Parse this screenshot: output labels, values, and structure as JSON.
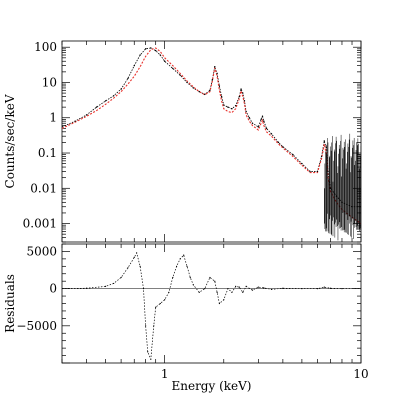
{
  "chart_data": [
    {
      "panel": "spectrum",
      "type": "line",
      "xlabel": "",
      "ylabel": "Counts/sec/keV",
      "xscale": "log",
      "yscale": "log",
      "xlim": [
        0.3,
        10
      ],
      "ylim": [
        0.0003,
        150
      ],
      "x_ticks": [
        1,
        10
      ],
      "y_ticks": [
        {
          "value": 100,
          "label": "100"
        },
        {
          "value": 10,
          "label": "10"
        },
        {
          "value": 1,
          "label": "1"
        },
        {
          "value": 0.1,
          "label": "0.1"
        },
        {
          "value": 0.01,
          "label": "0.01"
        },
        {
          "value": 0.001,
          "label": "0.001"
        }
      ],
      "series": [
        {
          "role": "data",
          "color": "#000000",
          "x": [
            0.3,
            0.35,
            0.4,
            0.45,
            0.5,
            0.55,
            0.6,
            0.65,
            0.7,
            0.75,
            0.8,
            0.85,
            0.9,
            0.95,
            1.0,
            1.1,
            1.2,
            1.3,
            1.4,
            1.5,
            1.6,
            1.7,
            1.75,
            1.8,
            1.85,
            1.9,
            1.95,
            2.0,
            2.1,
            2.2,
            2.3,
            2.4,
            2.45,
            2.5,
            2.55,
            2.6,
            2.7,
            2.8,
            3.0,
            3.1,
            3.15,
            3.2,
            3.3,
            3.5,
            3.8,
            4.0,
            4.5,
            5.0,
            5.5,
            6.0,
            6.3,
            6.5,
            6.7,
            6.8,
            7.0,
            7.5,
            8.0,
            9.0,
            10.0
          ],
          "y": [
            0.55,
            0.8,
            1.2,
            2.0,
            3.0,
            4.2,
            6.5,
            13,
            30,
            60,
            90,
            95,
            80,
            60,
            40,
            25,
            16,
            10,
            7,
            5.5,
            4.6,
            6,
            12,
            28,
            18,
            8,
            4,
            2.3,
            2.0,
            1.8,
            2.2,
            4.0,
            6.5,
            5.0,
            3.0,
            1.5,
            1.0,
            0.7,
            0.55,
            0.9,
            1.1,
            0.8,
            0.5,
            0.35,
            0.2,
            0.15,
            0.09,
            0.05,
            0.03,
            0.03,
            0.08,
            0.22,
            0.12,
            0.03,
            0.01,
            0.006,
            0.004,
            0.003,
            0.003
          ]
        },
        {
          "role": "model",
          "color": "#e8302a",
          "x": [
            0.3,
            0.35,
            0.4,
            0.45,
            0.5,
            0.55,
            0.6,
            0.65,
            0.7,
            0.75,
            0.8,
            0.85,
            0.9,
            0.95,
            1.0,
            1.1,
            1.2,
            1.3,
            1.4,
            1.5,
            1.6,
            1.7,
            1.75,
            1.8,
            1.85,
            1.9,
            1.95,
            2.0,
            2.1,
            2.2,
            2.3,
            2.4,
            2.45,
            2.5,
            2.55,
            2.6,
            2.7,
            2.8,
            3.0,
            3.1,
            3.15,
            3.2,
            3.3,
            3.5,
            3.8,
            4.0,
            4.5,
            5.0,
            5.5,
            6.0,
            6.3,
            6.5,
            6.7,
            6.8,
            7.0,
            7.5,
            8.0,
            9.0,
            10.0
          ],
          "y": [
            0.5,
            0.75,
            1.1,
            1.6,
            2.4,
            3.6,
            5.5,
            9,
            15,
            28,
            55,
            85,
            95,
            75,
            50,
            30,
            18,
            11,
            7.5,
            5.5,
            4.5,
            5.5,
            11,
            26,
            15,
            6,
            3,
            1.8,
            1.5,
            1.4,
            1.8,
            3.5,
            5.8,
            4.0,
            2.5,
            1.2,
            0.8,
            0.6,
            0.45,
            0.7,
            0.85,
            0.6,
            0.4,
            0.3,
            0.18,
            0.14,
            0.08,
            0.045,
            0.028,
            0.028,
            0.07,
            0.18,
            0.08,
            0.02,
            0.008,
            0.004,
            0.0025,
            0.0015,
            0.001
          ]
        }
      ]
    },
    {
      "panel": "residuals",
      "type": "line",
      "xlabel": "Energy (keV)",
      "ylabel": "Residuals",
      "xscale": "log",
      "xlim": [
        0.3,
        10
      ],
      "ylim": [
        -10000,
        6000
      ],
      "x_ticks": [
        {
          "value": 1,
          "label": "1"
        },
        {
          "value": 10,
          "label": "10"
        }
      ],
      "y_ticks": [
        {
          "value": 5000,
          "label": "5000"
        },
        {
          "value": 0,
          "label": "0"
        },
        {
          "value": -5000,
          "label": "−5000"
        }
      ],
      "series": [
        {
          "role": "residuals",
          "color": "#000000",
          "x": [
            0.3,
            0.4,
            0.5,
            0.55,
            0.6,
            0.65,
            0.7,
            0.72,
            0.75,
            0.78,
            0.8,
            0.82,
            0.85,
            0.88,
            0.9,
            0.95,
            1.0,
            1.05,
            1.1,
            1.15,
            1.2,
            1.25,
            1.3,
            1.35,
            1.4,
            1.5,
            1.6,
            1.7,
            1.8,
            1.85,
            1.9,
            2.0,
            2.1,
            2.2,
            2.3,
            2.4,
            2.5,
            2.6,
            2.8,
            3.0,
            3.2,
            3.5,
            4.0,
            5.0,
            6.0,
            6.5,
            7.0,
            8.0,
            10.0
          ],
          "y": [
            0,
            50,
            300,
            700,
            1500,
            2800,
            4200,
            4800,
            3000,
            0,
            -5000,
            -8500,
            -9500,
            -5000,
            -2500,
            -2000,
            -1500,
            -500,
            1500,
            3000,
            4000,
            4500,
            3000,
            1500,
            500,
            -500,
            0,
            1500,
            1000,
            -500,
            -2000,
            -1500,
            0,
            -500,
            300,
            200,
            -500,
            300,
            -200,
            200,
            100,
            -100,
            50,
            0,
            0,
            200,
            50,
            0,
            0
          ]
        }
      ]
    }
  ]
}
